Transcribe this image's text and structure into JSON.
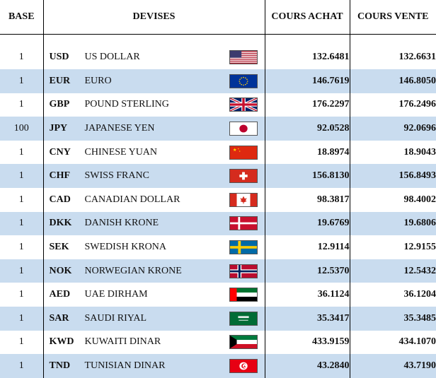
{
  "table": {
    "headers": {
      "base": "BASE",
      "devises": "DEVISES",
      "achat": "COURS ACHAT",
      "vente": "COURS VENTE"
    },
    "rows": [
      {
        "base": "1",
        "code": "USD",
        "name": "US DOLLAR",
        "flag": "us-flag-icon",
        "achat": "132.6481",
        "vente": "132.6631"
      },
      {
        "base": "1",
        "code": "EUR",
        "name": "EURO",
        "flag": "eu-flag-icon",
        "achat": "146.7619",
        "vente": "146.8050"
      },
      {
        "base": "1",
        "code": "GBP",
        "name": "POUND STERLING",
        "flag": "uk-flag-icon",
        "achat": "176.2297",
        "vente": "176.2496"
      },
      {
        "base": "100",
        "code": "JPY",
        "name": "JAPANESE YEN",
        "flag": "japan-flag-icon",
        "achat": "92.0528",
        "vente": "92.0696"
      },
      {
        "base": "1",
        "code": "CNY",
        "name": "CHINESE YUAN",
        "flag": "china-flag-icon",
        "achat": "18.8974",
        "vente": "18.9043"
      },
      {
        "base": "1",
        "code": "CHF",
        "name": "SWISS FRANC",
        "flag": "swiss-flag-icon",
        "achat": "156.8130",
        "vente": "156.8493"
      },
      {
        "base": "1",
        "code": "CAD",
        "name": "CANADIAN DOLLAR",
        "flag": "canada-flag-icon",
        "achat": "98.3817",
        "vente": "98.4002"
      },
      {
        "base": "1",
        "code": "DKK",
        "name": "DANISH KRONE",
        "flag": "denmark-flag-icon",
        "achat": "19.6769",
        "vente": "19.6806"
      },
      {
        "base": "1",
        "code": "SEK",
        "name": "SWEDISH KRONA",
        "flag": "sweden-flag-icon",
        "achat": "12.9114",
        "vente": "12.9155"
      },
      {
        "base": "1",
        "code": "NOK",
        "name": "NORWEGIAN KRONE",
        "flag": "norway-flag-icon",
        "achat": "12.5370",
        "vente": "12.5432"
      },
      {
        "base": "1",
        "code": "AED",
        "name": "UAE DIRHAM",
        "flag": "uae-flag-icon",
        "achat": "36.1124",
        "vente": "36.1204"
      },
      {
        "base": "1",
        "code": "SAR",
        "name": "SAUDI RIYAL",
        "flag": "saudi-flag-icon",
        "achat": "35.3417",
        "vente": "35.3485"
      },
      {
        "base": "1",
        "code": "KWD",
        "name": "KUWAITI DINAR",
        "flag": "kuwait-flag-icon",
        "achat": "433.9159",
        "vente": "434.1070"
      },
      {
        "base": "1",
        "code": "TND",
        "name": "TUNISIAN DINAR",
        "flag": "tunisia-flag-icon",
        "achat": "43.2840",
        "vente": "43.7190"
      }
    ]
  },
  "colors": {
    "alt_row": "#c9dcef",
    "border": "#000000"
  }
}
